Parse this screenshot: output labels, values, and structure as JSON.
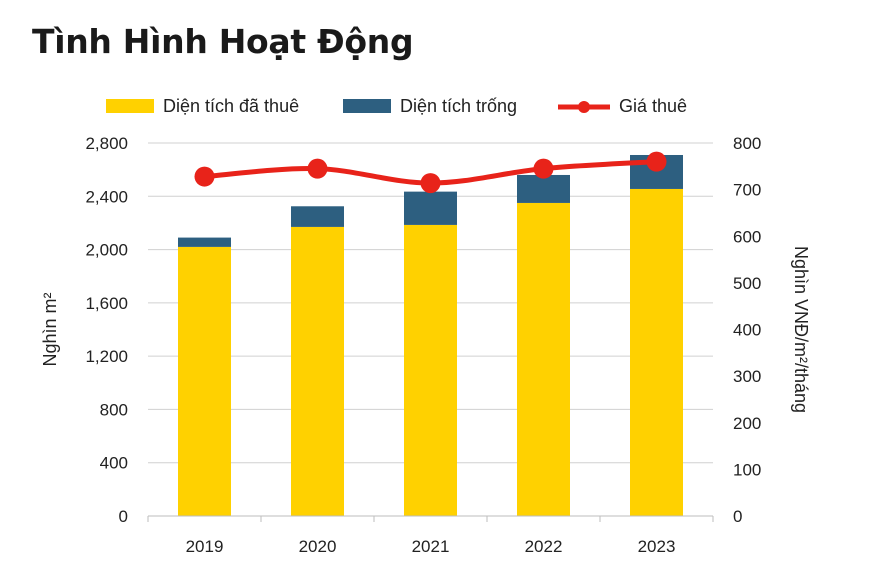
{
  "title": "Tình Hình Hoạt Động",
  "chart_data": {
    "type": "bar",
    "stacked": true,
    "categories": [
      "2019",
      "2020",
      "2021",
      "2022",
      "2023"
    ],
    "series": [
      {
        "name": "Diện tích đã thuê",
        "kind": "bar",
        "axis": "left",
        "color": "#FFD100",
        "values": [
          2020,
          2170,
          2185,
          2350,
          2455
        ]
      },
      {
        "name": "Diện tích trống",
        "kind": "bar",
        "axis": "left",
        "color": "#2D5F80",
        "values": [
          70,
          155,
          250,
          210,
          255
        ]
      },
      {
        "name": "Giá thuê",
        "kind": "line",
        "axis": "right",
        "color": "#E8231A",
        "values": [
          728,
          745,
          714,
          745,
          760
        ]
      }
    ],
    "ylabel_left": "Nghìn m²",
    "ylabel_right": "Nghìn VNĐ/m²/tháng",
    "ylim_left": [
      0,
      2800
    ],
    "yticks_left": [
      0,
      400,
      800,
      1200,
      1600,
      2000,
      2400,
      2800
    ],
    "ytick_labels_left": [
      "0",
      "400",
      "800",
      "1,200",
      "1,600",
      "2,000",
      "2,400",
      "2,800"
    ],
    "ylim_right": [
      0,
      800
    ],
    "yticks_right": [
      0,
      100,
      200,
      300,
      400,
      500,
      600,
      700,
      800
    ],
    "ytick_labels_right": [
      "0",
      "100",
      "200",
      "300",
      "400",
      "500",
      "600",
      "700",
      "800"
    ],
    "grid": true,
    "legend_position": "top"
  }
}
